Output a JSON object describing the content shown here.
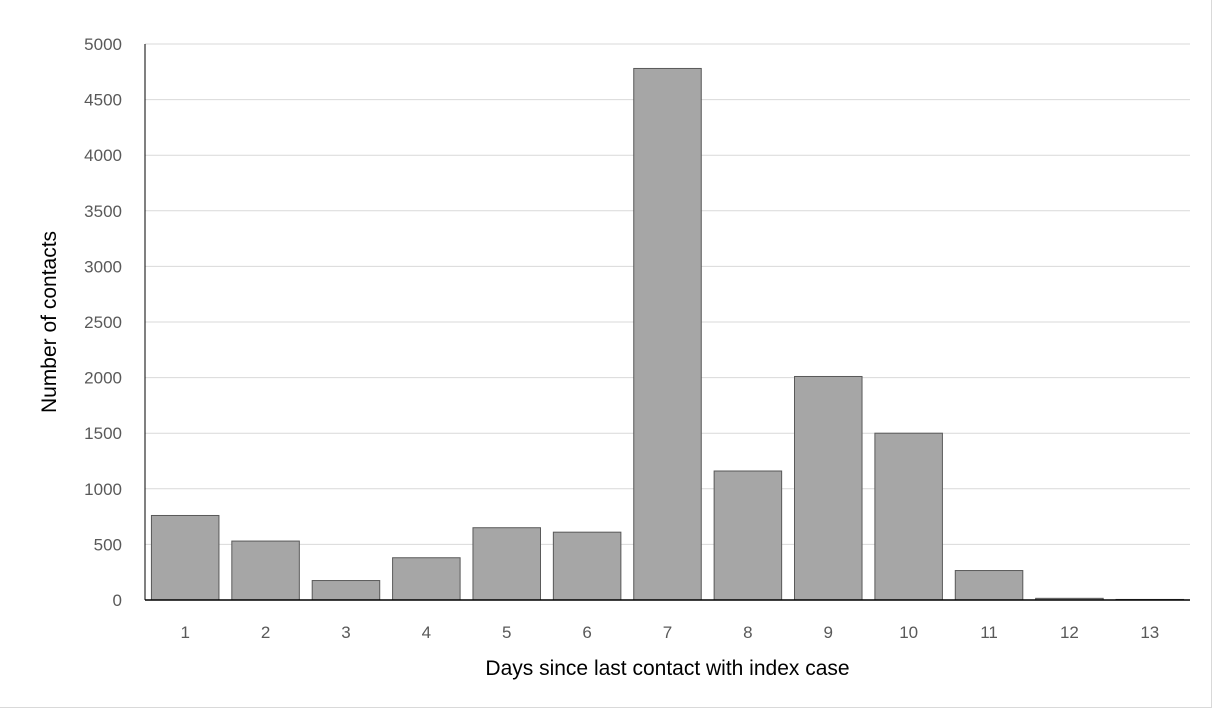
{
  "chart_data": {
    "type": "bar",
    "categories": [
      "1",
      "2",
      "3",
      "4",
      "5",
      "6",
      "7",
      "8",
      "9",
      "10",
      "11",
      "12",
      "13"
    ],
    "values": [
      760,
      530,
      175,
      380,
      650,
      610,
      4780,
      1160,
      2010,
      1500,
      265,
      15,
      5
    ],
    "xlabel": "Days since last contact with index case",
    "ylabel": "Number of contacts",
    "ylim": [
      0,
      5000
    ],
    "yticks": [
      0,
      500,
      1000,
      1500,
      2000,
      2500,
      3000,
      3500,
      4000,
      4500,
      5000
    ],
    "grid": true,
    "colors": {
      "bar_fill": "#a6a6a6",
      "bar_stroke": "#595959",
      "grid": "#d9d9d9",
      "axis": "#000000"
    }
  }
}
